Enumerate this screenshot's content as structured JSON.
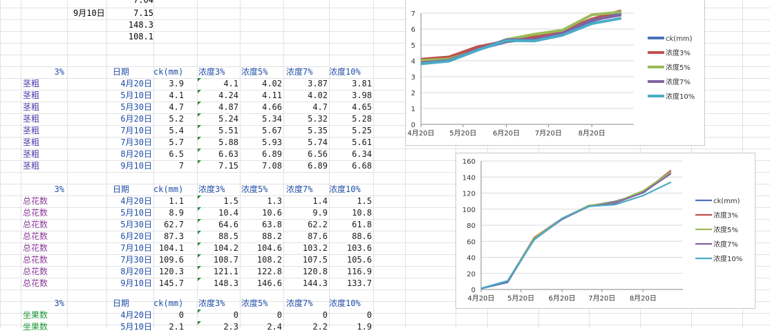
{
  "top_rows": {
    "row0": {
      "a": "",
      "b": "",
      "c": "7.04"
    },
    "row1": {
      "b": "9月10日",
      "c": "7.15"
    },
    "row2": {
      "c": "148.3"
    },
    "row3": {
      "c": "108.1"
    }
  },
  "sections": [
    {
      "pct_label": "3%",
      "row_label": "茎粗",
      "label_color": "#4a3aa8",
      "headers": [
        "日期",
        "ck(mm)",
        "浓度3%",
        "浓度5%",
        "浓度7%",
        "浓度10%"
      ],
      "rows": [
        [
          "4月20日",
          "3.9",
          "4.1",
          "4.02",
          "3.87",
          "3.81"
        ],
        [
          "5月10日",
          "4.1",
          "4.24",
          "4.11",
          "4.02",
          "3.98"
        ],
        [
          "5月30日",
          "4.7",
          "4.87",
          "4.66",
          "4.7",
          "4.65"
        ],
        [
          "6月20日",
          "5.2",
          "5.24",
          "5.34",
          "5.32",
          "5.28"
        ],
        [
          "7月10日",
          "5.4",
          "5.51",
          "5.67",
          "5.35",
          "5.25"
        ],
        [
          "7月30日",
          "5.7",
          "5.88",
          "5.93",
          "5.74",
          "5.61"
        ],
        [
          "8月20日",
          "6.5",
          "6.63",
          "6.89",
          "6.56",
          "6.34"
        ],
        [
          "9月10日",
          "7",
          "7.15",
          "7.08",
          "6.89",
          "6.68"
        ]
      ]
    },
    {
      "pct_label": "3%",
      "row_label": "总花数",
      "label_color": "#8a3a9a",
      "headers": [
        "日期",
        "ck(mm)",
        "浓度3%",
        "浓度5%",
        "浓度7%",
        "浓度10%"
      ],
      "rows": [
        [
          "4月20日",
          "1.1",
          "1.5",
          "1.3",
          "1.4",
          "1.5"
        ],
        [
          "5月10日",
          "8.9",
          "10.4",
          "10.6",
          "9.9",
          "10.8"
        ],
        [
          "5月30日",
          "62.7",
          "64.6",
          "63.8",
          "62.2",
          "61.8"
        ],
        [
          "6月20日",
          "87.3",
          "88.5",
          "88.2",
          "87.6",
          "88.6"
        ],
        [
          "7月10日",
          "104.1",
          "104.2",
          "104.6",
          "103.2",
          "103.6"
        ],
        [
          "7月30日",
          "109.6",
          "108.7",
          "108.2",
          "107.5",
          "105.6"
        ],
        [
          "8月20日",
          "120.3",
          "121.1",
          "122.8",
          "120.8",
          "116.9"
        ],
        [
          "9月10日",
          "145.7",
          "148.3",
          "146.6",
          "144.3",
          "133.7"
        ]
      ]
    },
    {
      "pct_label": "3%",
      "row_label": "坐果数",
      "label_color": "#1e9a3a",
      "headers": [
        "日期",
        "ck(mm)",
        "浓度3%",
        "浓度5%",
        "浓度7%",
        "浓度10%"
      ],
      "rows": [
        [
          "4月20日",
          "0",
          "0",
          "0",
          "0",
          "0"
        ],
        [
          "5月10日",
          "2.1",
          "2.3",
          "2.4",
          "2.2",
          "1.9"
        ]
      ]
    }
  ],
  "colors": {
    "label_blue": "#1f4ea8",
    "text_dark": "#1a1a1a",
    "gridline": "#e2e2e2",
    "ck": "#4a72b8",
    "c3": "#c0504d",
    "c5": "#9bbb59",
    "c7": "#8064a2",
    "c10": "#4bacc6"
  },
  "chart_data": [
    {
      "type": "line",
      "x_ticks": [
        "4月20日",
        "5月20日",
        "6月20日",
        "7月20日",
        "8月20日"
      ],
      "x": [
        "4月20日",
        "5月10日",
        "5月30日",
        "6月20日",
        "7月10日",
        "7月30日",
        "8月20日",
        "9月10日"
      ],
      "ylim": [
        0,
        7
      ],
      "y_ticks": [
        "0",
        "1",
        "2",
        "3",
        "4",
        "5",
        "6",
        "7"
      ],
      "series": [
        {
          "name": "ck(mm)",
          "values": [
            3.9,
            4.1,
            4.7,
            5.2,
            5.4,
            5.7,
            6.5,
            7
          ]
        },
        {
          "name": "浓度3%",
          "values": [
            4.1,
            4.24,
            4.87,
            5.24,
            5.51,
            5.88,
            6.63,
            7.15
          ]
        },
        {
          "name": "浓度5%",
          "values": [
            4.02,
            4.11,
            4.66,
            5.34,
            5.67,
            5.93,
            6.89,
            7.08
          ]
        },
        {
          "name": "浓度7%",
          "values": [
            3.87,
            4.02,
            4.7,
            5.32,
            5.35,
            5.74,
            6.56,
            6.89
          ]
        },
        {
          "name": "浓度10%",
          "values": [
            3.81,
            3.98,
            4.65,
            5.28,
            5.25,
            5.61,
            6.34,
            6.68
          ]
        }
      ],
      "legend": "right",
      "grid": true
    },
    {
      "type": "line",
      "x_ticks": [
        "4月20日",
        "5月20日",
        "6月20日",
        "7月20日",
        "8月20日"
      ],
      "x": [
        "4月20日",
        "5月10日",
        "5月30日",
        "6月20日",
        "7月10日",
        "7月30日",
        "8月20日",
        "9月10日"
      ],
      "ylim": [
        0,
        160
      ],
      "y_ticks": [
        "0",
        "20",
        "40",
        "60",
        "80",
        "100",
        "120",
        "140",
        "160"
      ],
      "series": [
        {
          "name": "ck(mm)",
          "values": [
            1.1,
            8.9,
            62.7,
            87.3,
            104.1,
            109.6,
            120.3,
            145.7
          ]
        },
        {
          "name": "浓度3%",
          "values": [
            1.5,
            10.4,
            64.6,
            88.5,
            104.2,
            108.7,
            121.1,
            148.3
          ]
        },
        {
          "name": "浓度5%",
          "values": [
            1.3,
            10.6,
            63.8,
            88.2,
            104.6,
            108.2,
            122.8,
            146.6
          ]
        },
        {
          "name": "浓度7%",
          "values": [
            1.4,
            9.9,
            62.2,
            87.6,
            103.2,
            107.5,
            120.8,
            144.3
          ]
        },
        {
          "name": "浓度10%",
          "values": [
            1.5,
            10.8,
            61.8,
            88.6,
            103.6,
            105.6,
            116.9,
            133.7
          ]
        }
      ],
      "legend": "right",
      "grid": true
    }
  ]
}
